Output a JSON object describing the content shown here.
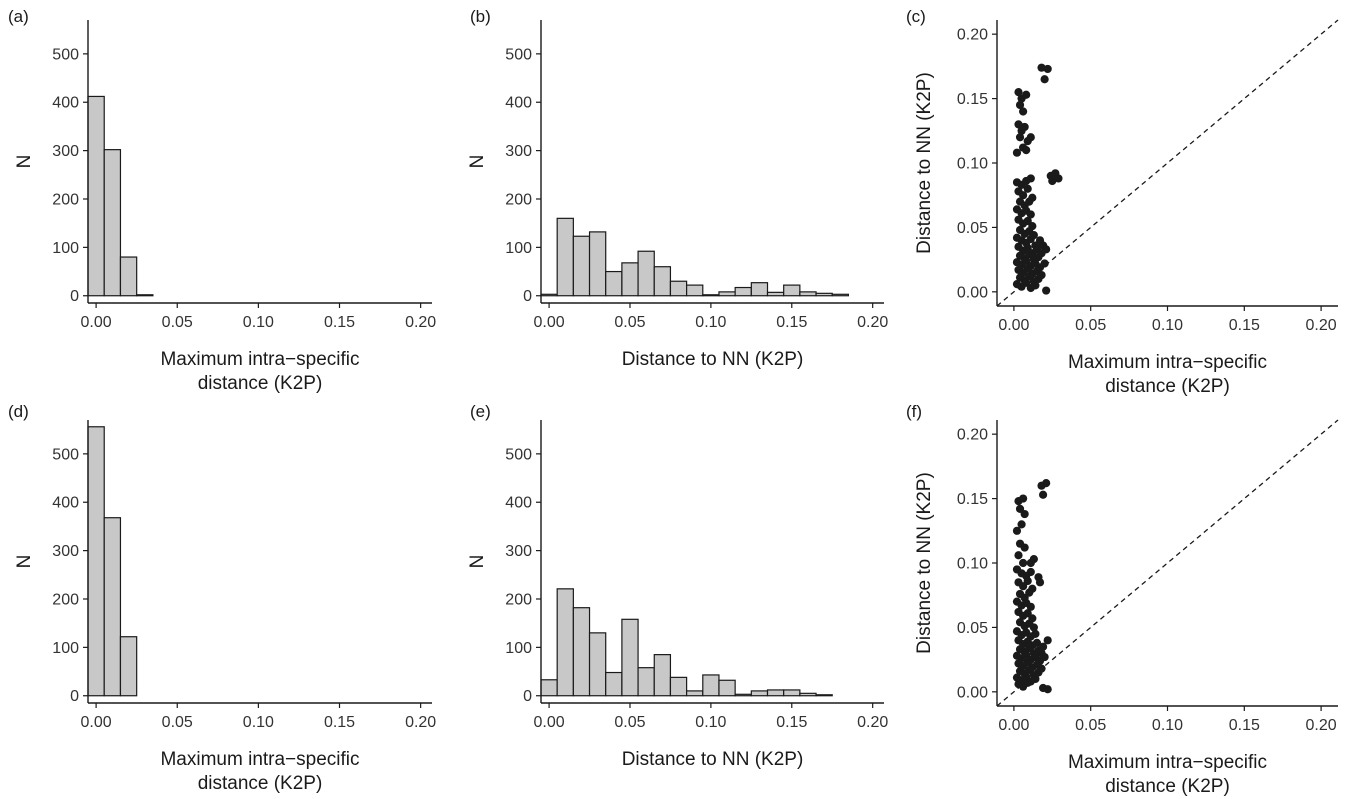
{
  "charts": [
    {
      "type": "bar",
      "panel_label": "(a)",
      "xlabel_lines": [
        "Maximum intra−specific",
        "distance (K2P)"
      ],
      "ylabel": "N",
      "xlim": [
        -0.005,
        0.207
      ],
      "ylim": [
        -15,
        570
      ],
      "xticks": [
        0.0,
        0.05,
        0.1,
        0.15,
        0.2
      ],
      "xtick_labels": [
        "0.00",
        "0.05",
        "0.10",
        "0.15",
        "0.20"
      ],
      "yticks": [
        0,
        100,
        200,
        300,
        400,
        500
      ],
      "ytick_labels": [
        "0",
        "100",
        "200",
        "300",
        "400",
        "500"
      ],
      "bin_width": 0.01,
      "bars": [
        {
          "x": 0.0,
          "value": 412
        },
        {
          "x": 0.01,
          "value": 302
        },
        {
          "x": 0.02,
          "value": 80
        },
        {
          "x": 0.03,
          "value": 2
        }
      ]
    },
    {
      "type": "bar",
      "panel_label": "(b)",
      "xlabel_lines": [
        "Distance to NN (K2P)"
      ],
      "ylabel": "N",
      "xlim": [
        -0.005,
        0.207
      ],
      "ylim": [
        -15,
        570
      ],
      "xticks": [
        0.0,
        0.05,
        0.1,
        0.15,
        0.2
      ],
      "xtick_labels": [
        "0.00",
        "0.05",
        "0.10",
        "0.15",
        "0.20"
      ],
      "yticks": [
        0,
        100,
        200,
        300,
        400,
        500
      ],
      "ytick_labels": [
        "0",
        "100",
        "200",
        "300",
        "400",
        "500"
      ],
      "bin_width": 0.01,
      "bars": [
        {
          "x": 0.0,
          "value": 3
        },
        {
          "x": 0.01,
          "value": 160
        },
        {
          "x": 0.02,
          "value": 123
        },
        {
          "x": 0.03,
          "value": 132
        },
        {
          "x": 0.04,
          "value": 50
        },
        {
          "x": 0.05,
          "value": 68
        },
        {
          "x": 0.06,
          "value": 92
        },
        {
          "x": 0.07,
          "value": 60
        },
        {
          "x": 0.08,
          "value": 30
        },
        {
          "x": 0.09,
          "value": 22
        },
        {
          "x": 0.1,
          "value": 2
        },
        {
          "x": 0.11,
          "value": 8
        },
        {
          "x": 0.12,
          "value": 17
        },
        {
          "x": 0.13,
          "value": 27
        },
        {
          "x": 0.14,
          "value": 7
        },
        {
          "x": 0.15,
          "value": 22
        },
        {
          "x": 0.16,
          "value": 8
        },
        {
          "x": 0.17,
          "value": 5
        },
        {
          "x": 0.18,
          "value": 3
        }
      ]
    },
    {
      "type": "scatter",
      "panel_label": "(c)",
      "xlabel_lines": [
        "Maximum intra−specific",
        "distance (K2P)"
      ],
      "ylabel": "Distance to NN (K2P)",
      "xlim": [
        -0.011,
        0.211
      ],
      "ylim": [
        -0.011,
        0.211
      ],
      "xticks": [
        0.0,
        0.05,
        0.1,
        0.15,
        0.2
      ],
      "xtick_labels": [
        "0.00",
        "0.05",
        "0.10",
        "0.15",
        "0.20"
      ],
      "yticks": [
        0.0,
        0.05,
        0.1,
        0.15,
        0.2
      ],
      "ytick_labels": [
        "0.00",
        "0.05",
        "0.10",
        "0.15",
        "0.20"
      ],
      "reference_line": "y = x (dashed)",
      "points": [
        [
          0.003,
          0.155
        ],
        [
          0.005,
          0.15
        ],
        [
          0.008,
          0.153
        ],
        [
          0.004,
          0.145
        ],
        [
          0.006,
          0.14
        ],
        [
          0.003,
          0.13
        ],
        [
          0.005,
          0.125
        ],
        [
          0.007,
          0.128
        ],
        [
          0.004,
          0.12
        ],
        [
          0.009,
          0.117
        ],
        [
          0.006,
          0.112
        ],
        [
          0.011,
          0.12
        ],
        [
          0.008,
          0.11
        ],
        [
          0.002,
          0.108
        ],
        [
          0.018,
          0.174
        ],
        [
          0.022,
          0.173
        ],
        [
          0.02,
          0.165
        ],
        [
          0.024,
          0.09
        ],
        [
          0.027,
          0.092
        ],
        [
          0.029,
          0.088
        ],
        [
          0.025,
          0.086
        ],
        [
          0.002,
          0.085
        ],
        [
          0.005,
          0.083
        ],
        [
          0.008,
          0.086
        ],
        [
          0.011,
          0.088
        ],
        [
          0.003,
          0.078
        ],
        [
          0.006,
          0.075
        ],
        [
          0.009,
          0.08
        ],
        [
          0.012,
          0.073
        ],
        [
          0.004,
          0.07
        ],
        [
          0.007,
          0.067
        ],
        [
          0.01,
          0.07
        ],
        [
          0.002,
          0.064
        ],
        [
          0.005,
          0.061
        ],
        [
          0.008,
          0.063
        ],
        [
          0.011,
          0.06
        ],
        [
          0.003,
          0.056
        ],
        [
          0.006,
          0.053
        ],
        [
          0.009,
          0.055
        ],
        [
          0.012,
          0.051
        ],
        [
          0.004,
          0.048
        ],
        [
          0.007,
          0.045
        ],
        [
          0.01,
          0.047
        ],
        [
          0.013,
          0.044
        ],
        [
          0.002,
          0.042
        ],
        [
          0.005,
          0.04
        ],
        [
          0.008,
          0.038
        ],
        [
          0.011,
          0.041
        ],
        [
          0.014,
          0.036
        ],
        [
          0.003,
          0.035
        ],
        [
          0.006,
          0.032
        ],
        [
          0.009,
          0.034
        ],
        [
          0.012,
          0.03
        ],
        [
          0.015,
          0.033
        ],
        [
          0.004,
          0.028
        ],
        [
          0.007,
          0.026
        ],
        [
          0.01,
          0.029
        ],
        [
          0.013,
          0.025
        ],
        [
          0.016,
          0.027
        ],
        [
          0.002,
          0.023
        ],
        [
          0.005,
          0.021
        ],
        [
          0.008,
          0.024
        ],
        [
          0.011,
          0.02
        ],
        [
          0.014,
          0.022
        ],
        [
          0.017,
          0.019
        ],
        [
          0.003,
          0.017
        ],
        [
          0.006,
          0.015
        ],
        [
          0.009,
          0.018
        ],
        [
          0.012,
          0.014
        ],
        [
          0.015,
          0.016
        ],
        [
          0.018,
          0.013
        ],
        [
          0.004,
          0.011
        ],
        [
          0.007,
          0.009
        ],
        [
          0.01,
          0.012
        ],
        [
          0.013,
          0.008
        ],
        [
          0.016,
          0.01
        ],
        [
          0.002,
          0.006
        ],
        [
          0.005,
          0.004
        ],
        [
          0.008,
          0.007
        ],
        [
          0.011,
          0.003
        ],
        [
          0.014,
          0.005
        ],
        [
          0.018,
          0.03
        ],
        [
          0.019,
          0.036
        ],
        [
          0.021,
          0.033
        ],
        [
          0.02,
          0.022
        ],
        [
          0.017,
          0.04
        ],
        [
          0.021,
          0.001
        ]
      ]
    },
    {
      "type": "bar",
      "panel_label": "(d)",
      "xlabel_lines": [
        "Maximum intra−specific",
        "distance (K2P)"
      ],
      "ylabel": "N",
      "xlim": [
        -0.005,
        0.207
      ],
      "ylim": [
        -15,
        570
      ],
      "xticks": [
        0.0,
        0.05,
        0.1,
        0.15,
        0.2
      ],
      "xtick_labels": [
        "0.00",
        "0.05",
        "0.10",
        "0.15",
        "0.20"
      ],
      "yticks": [
        0,
        100,
        200,
        300,
        400,
        500
      ],
      "ytick_labels": [
        "0",
        "100",
        "200",
        "300",
        "400",
        "500"
      ],
      "bin_width": 0.01,
      "bars": [
        {
          "x": 0.0,
          "value": 556
        },
        {
          "x": 0.01,
          "value": 368
        },
        {
          "x": 0.02,
          "value": 122
        }
      ]
    },
    {
      "type": "bar",
      "panel_label": "(e)",
      "xlabel_lines": [
        "Distance to NN (K2P)"
      ],
      "ylabel": "N",
      "xlim": [
        -0.005,
        0.207
      ],
      "ylim": [
        -15,
        570
      ],
      "xticks": [
        0.0,
        0.05,
        0.1,
        0.15,
        0.2
      ],
      "xtick_labels": [
        "0.00",
        "0.05",
        "0.10",
        "0.15",
        "0.20"
      ],
      "yticks": [
        0,
        100,
        200,
        300,
        400,
        500
      ],
      "ytick_labels": [
        "0",
        "100",
        "200",
        "300",
        "400",
        "500"
      ],
      "bin_width": 0.01,
      "bars": [
        {
          "x": 0.0,
          "value": 33
        },
        {
          "x": 0.01,
          "value": 221
        },
        {
          "x": 0.02,
          "value": 182
        },
        {
          "x": 0.03,
          "value": 130
        },
        {
          "x": 0.04,
          "value": 48
        },
        {
          "x": 0.05,
          "value": 158
        },
        {
          "x": 0.06,
          "value": 58
        },
        {
          "x": 0.07,
          "value": 85
        },
        {
          "x": 0.08,
          "value": 38
        },
        {
          "x": 0.09,
          "value": 10
        },
        {
          "x": 0.1,
          "value": 43
        },
        {
          "x": 0.11,
          "value": 32
        },
        {
          "x": 0.12,
          "value": 3
        },
        {
          "x": 0.13,
          "value": 10
        },
        {
          "x": 0.14,
          "value": 12
        },
        {
          "x": 0.15,
          "value": 12
        },
        {
          "x": 0.16,
          "value": 5
        },
        {
          "x": 0.17,
          "value": 2
        }
      ]
    },
    {
      "type": "scatter",
      "panel_label": "(f)",
      "xlabel_lines": [
        "Maximum intra−specific",
        "distance (K2P)"
      ],
      "ylabel": "Distance to NN (K2P)",
      "xlim": [
        -0.011,
        0.211
      ],
      "ylim": [
        -0.011,
        0.211
      ],
      "xticks": [
        0.0,
        0.05,
        0.1,
        0.15,
        0.2
      ],
      "xtick_labels": [
        "0.00",
        "0.05",
        "0.10",
        "0.15",
        "0.20"
      ],
      "yticks": [
        0.0,
        0.05,
        0.1,
        0.15,
        0.2
      ],
      "ytick_labels": [
        "0.00",
        "0.05",
        "0.10",
        "0.15",
        "0.20"
      ],
      "reference_line": "y = x (dashed)",
      "points": [
        [
          0.003,
          0.148
        ],
        [
          0.006,
          0.15
        ],
        [
          0.004,
          0.142
        ],
        [
          0.007,
          0.138
        ],
        [
          0.005,
          0.13
        ],
        [
          0.002,
          0.125
        ],
        [
          0.004,
          0.115
        ],
        [
          0.007,
          0.112
        ],
        [
          0.003,
          0.106
        ],
        [
          0.006,
          0.1
        ],
        [
          0.018,
          0.16
        ],
        [
          0.021,
          0.162
        ],
        [
          0.019,
          0.153
        ],
        [
          0.013,
          0.103
        ],
        [
          0.011,
          0.1
        ],
        [
          0.002,
          0.095
        ],
        [
          0.005,
          0.092
        ],
        [
          0.008,
          0.09
        ],
        [
          0.011,
          0.093
        ],
        [
          0.003,
          0.085
        ],
        [
          0.006,
          0.082
        ],
        [
          0.009,
          0.086
        ],
        [
          0.012,
          0.08
        ],
        [
          0.004,
          0.076
        ],
        [
          0.007,
          0.073
        ],
        [
          0.01,
          0.077
        ],
        [
          0.002,
          0.07
        ],
        [
          0.005,
          0.067
        ],
        [
          0.008,
          0.069
        ],
        [
          0.011,
          0.066
        ],
        [
          0.003,
          0.062
        ],
        [
          0.006,
          0.059
        ],
        [
          0.009,
          0.061
        ],
        [
          0.012,
          0.057
        ],
        [
          0.004,
          0.054
        ],
        [
          0.007,
          0.051
        ],
        [
          0.01,
          0.053
        ],
        [
          0.013,
          0.05
        ],
        [
          0.002,
          0.047
        ],
        [
          0.005,
          0.044
        ],
        [
          0.008,
          0.046
        ],
        [
          0.011,
          0.043
        ],
        [
          0.014,
          0.045
        ],
        [
          0.003,
          0.04
        ],
        [
          0.006,
          0.037
        ],
        [
          0.009,
          0.039
        ],
        [
          0.012,
          0.036
        ],
        [
          0.015,
          0.038
        ],
        [
          0.004,
          0.033
        ],
        [
          0.007,
          0.031
        ],
        [
          0.01,
          0.034
        ],
        [
          0.013,
          0.03
        ],
        [
          0.016,
          0.032
        ],
        [
          0.002,
          0.028
        ],
        [
          0.005,
          0.026
        ],
        [
          0.008,
          0.029
        ],
        [
          0.011,
          0.025
        ],
        [
          0.014,
          0.027
        ],
        [
          0.017,
          0.024
        ],
        [
          0.003,
          0.022
        ],
        [
          0.006,
          0.02
        ],
        [
          0.009,
          0.023
        ],
        [
          0.012,
          0.019
        ],
        [
          0.015,
          0.021
        ],
        [
          0.018,
          0.018
        ],
        [
          0.004,
          0.016
        ],
        [
          0.007,
          0.014
        ],
        [
          0.01,
          0.017
        ],
        [
          0.013,
          0.013
        ],
        [
          0.016,
          0.015
        ],
        [
          0.002,
          0.011
        ],
        [
          0.005,
          0.009
        ],
        [
          0.008,
          0.012
        ],
        [
          0.011,
          0.008
        ],
        [
          0.014,
          0.01
        ],
        [
          0.003,
          0.006
        ],
        [
          0.006,
          0.004
        ],
        [
          0.009,
          0.007
        ],
        [
          0.017,
          0.085
        ],
        [
          0.016,
          0.089
        ],
        [
          0.018,
          0.03
        ],
        [
          0.02,
          0.027
        ],
        [
          0.022,
          0.04
        ],
        [
          0.019,
          0.035
        ],
        [
          0.019,
          0.003
        ],
        [
          0.022,
          0.002
        ]
      ]
    }
  ]
}
